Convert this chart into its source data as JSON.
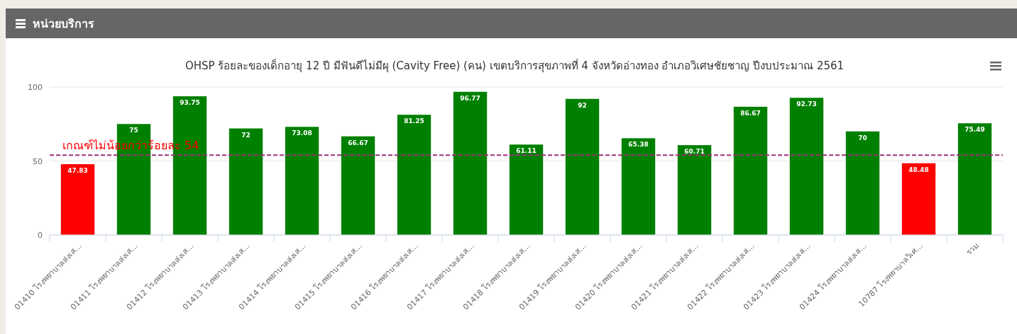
{
  "chart_data": {
    "type": "bar",
    "title": "OHSP ร้อยละของเด็กอายุ 12 ปี มีฟันดีไม่มีผุ (Cavity Free) (คน) เขตบริการสุขภาพที่ 4 จังหวัดอ่างทอง อำเภอวิเศษชัยชาญ ปีงบประมาณ 2561",
    "annotations": [
      "หน่วยบริการ"
    ],
    "categories": [
      "01410 โรงพยาบาลส่งเส...",
      "01411 โรงพยาบาลส่งเส...",
      "01412 โรงพยาบาลส่งเส...",
      "01413 โรงพยาบาลส่งเส...",
      "01414 โรงพยาบาลส่งเส...",
      "01415 โรงพยาบาลส่งเส...",
      "01416 โรงพยาบาลส่งเส...",
      "01417 โรงพยาบาลส่งเส...",
      "01418 โรงพยาบาลส่งเส...",
      "01419 โรงพยาบาลส่งเส...",
      "01420 โรงพยาบาลส่งเส...",
      "01421 โรงพยาบาลส่งเส...",
      "01422 โรงพยาบาลส่งเส...",
      "01423 โรงพยาบาลส่งเส...",
      "01424 โรงพยาบาลส่งเส...",
      "10787 โรงพยาบาลวิเศ...",
      "รวม"
    ],
    "values": [
      47.83,
      75,
      93.75,
      72,
      73.08,
      66.67,
      81.25,
      96.77,
      61.11,
      92,
      65.38,
      60.71,
      86.67,
      92.73,
      70,
      48.48,
      75.49
    ],
    "colors": [
      "#ff0000",
      "#008000",
      "#008000",
      "#008000",
      "#008000",
      "#008000",
      "#008000",
      "#008000",
      "#008000",
      "#008000",
      "#008000",
      "#008000",
      "#008000",
      "#008000",
      "#008000",
      "#ff0000",
      "#008000"
    ],
    "data_labels": true,
    "ylim": [
      0,
      100
    ],
    "yticks": [
      0,
      50,
      100
    ],
    "grid": "y",
    "ref_lines": [
      {
        "axis": "y",
        "value": 54,
        "label": "เกณฑ์ไม่น้อยกว่าร้อยละ 54",
        "color": "#a0307a",
        "line_style": "dashed"
      }
    ]
  }
}
